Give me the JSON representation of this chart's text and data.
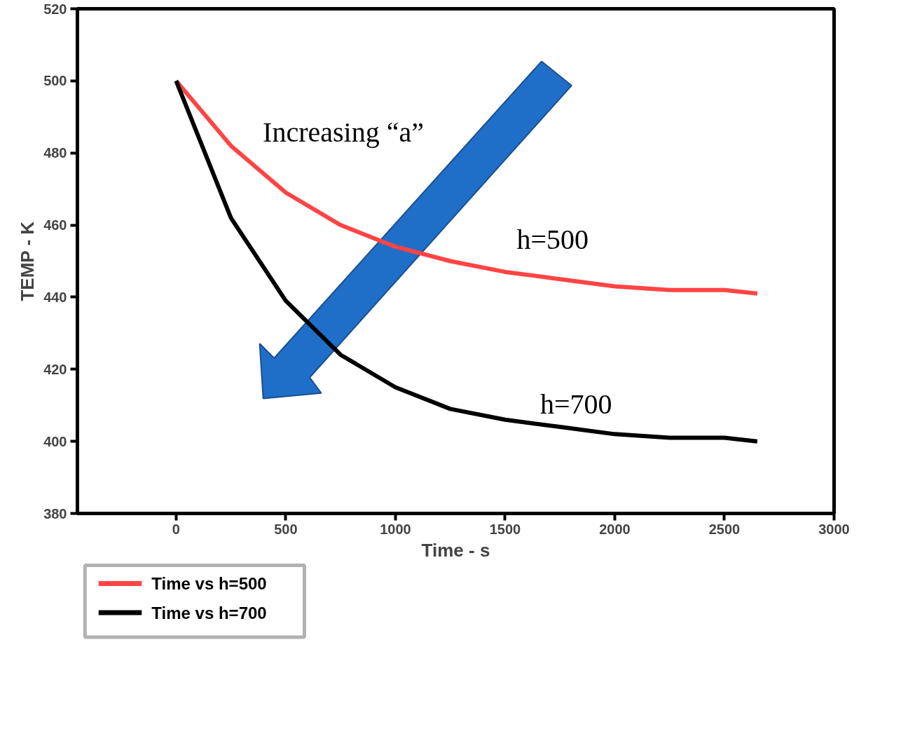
{
  "chart_data": {
    "type": "line",
    "xlabel": "Time - s",
    "ylabel": "TEMP - K",
    "x": [
      0,
      250,
      500,
      750,
      1000,
      1250,
      1500,
      1750,
      2000,
      2250,
      2500,
      2650
    ],
    "series": [
      {
        "name": "Time vs h=500",
        "color": "#ff4444",
        "values": [
          500,
          482,
          469,
          460,
          454,
          450,
          447,
          445,
          443,
          442,
          442,
          441
        ]
      },
      {
        "name": "Time vs h=700",
        "color": "#000000",
        "values": [
          500,
          462,
          439,
          424,
          415,
          409,
          406,
          404,
          402,
          401,
          401,
          400
        ]
      }
    ],
    "xlim": [
      -450,
      3000
    ],
    "xticks": [
      0,
      500,
      1000,
      1500,
      2000,
      2500,
      3000
    ],
    "ylim": [
      380,
      520
    ],
    "yticks": [
      380,
      400,
      420,
      440,
      460,
      480,
      500,
      520
    ],
    "annotations": [
      "Increasing “a”",
      "h=500",
      "h=700"
    ],
    "grid": false,
    "legend": "bottom left",
    "marker": "none",
    "line_style": "solid"
  }
}
